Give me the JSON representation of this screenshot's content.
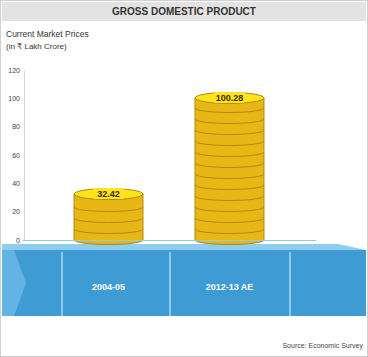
{
  "chart_data": {
    "type": "bar",
    "title": "GROSS DOMESTIC PRODUCT",
    "ylabel": "Current Market Prices",
    "ylabel_units": "(in ₹ Lakh Crore)",
    "categories": [
      "2004-05",
      "2012-13 AE"
    ],
    "values": [
      32.42,
      100.28
    ],
    "color": "#e8b716",
    "ylim": [
      0,
      120
    ],
    "yticks": [
      0,
      20,
      40,
      60,
      80,
      100,
      120
    ],
    "grid": false,
    "data_labels": true,
    "source": "Source: Economic Survey"
  }
}
